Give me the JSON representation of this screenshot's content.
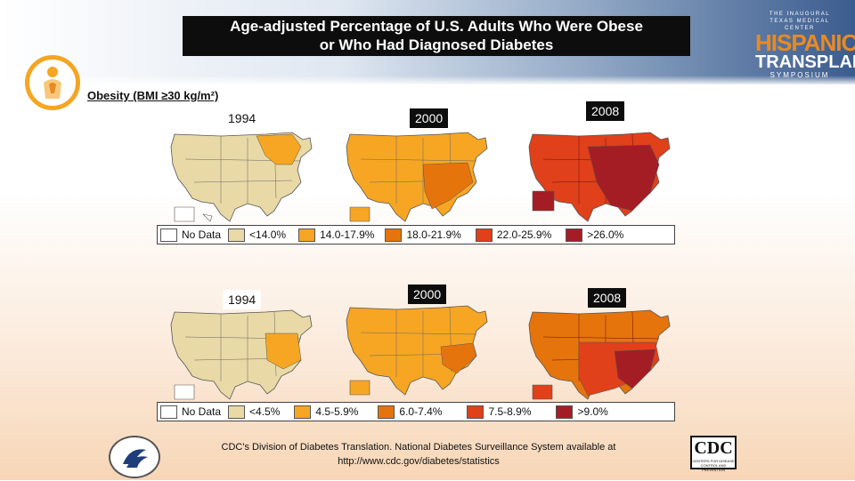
{
  "title": {
    "line1": "Age-adjusted Percentage of U.S. Adults Who Were Obese",
    "line2": "or Who Had Diagnosed Diabetes"
  },
  "branding": {
    "small_top": "THE INAUGURAL",
    "center": "TEXAS MEDICAL CENTER",
    "word1": "HISPANIC",
    "word2": "TRANSPLANT",
    "word3": "SYMPOSIUM",
    "accent_color": "#e98a22"
  },
  "obesity_section": {
    "label": "Obesity (BMI ≥30 kg/m²)",
    "years": [
      "1994",
      "2000",
      "2008"
    ],
    "legend": [
      {
        "label": "No Data",
        "color": "#ffffff"
      },
      {
        "label": "<14.0%",
        "color": "#e8d9a6"
      },
      {
        "label": "14.0-17.9%",
        "color": "#f6a623"
      },
      {
        "label": "18.0-21.9%",
        "color": "#e6740c"
      },
      {
        "label": "22.0-25.9%",
        "color": "#e0401a"
      },
      {
        "label": ">26.0%",
        "color": "#a51d24"
      }
    ]
  },
  "diabetes_section": {
    "years": [
      "1994",
      "2000",
      "2008"
    ],
    "legend": [
      {
        "label": "No Data",
        "color": "#ffffff"
      },
      {
        "label": "<4.5%",
        "color": "#e8d9a6"
      },
      {
        "label": "4.5-5.9%",
        "color": "#f6a623"
      },
      {
        "label": "6.0-7.4%",
        "color": "#e6740c"
      },
      {
        "label": "7.5-8.9%",
        "color": "#e0401a"
      },
      {
        "label": ">9.0%",
        "color": "#a51d24"
      }
    ]
  },
  "footer": {
    "line1": "CDC's Division of Diabetes Translation. National Diabetes Surveillance System available at",
    "line2": "http://www.cdc.gov/diabetes/statistics"
  },
  "cdc_logo": {
    "word": "CDC",
    "sub": "CENTERS FOR DISEASE CONTROL AND PREVENTION"
  }
}
